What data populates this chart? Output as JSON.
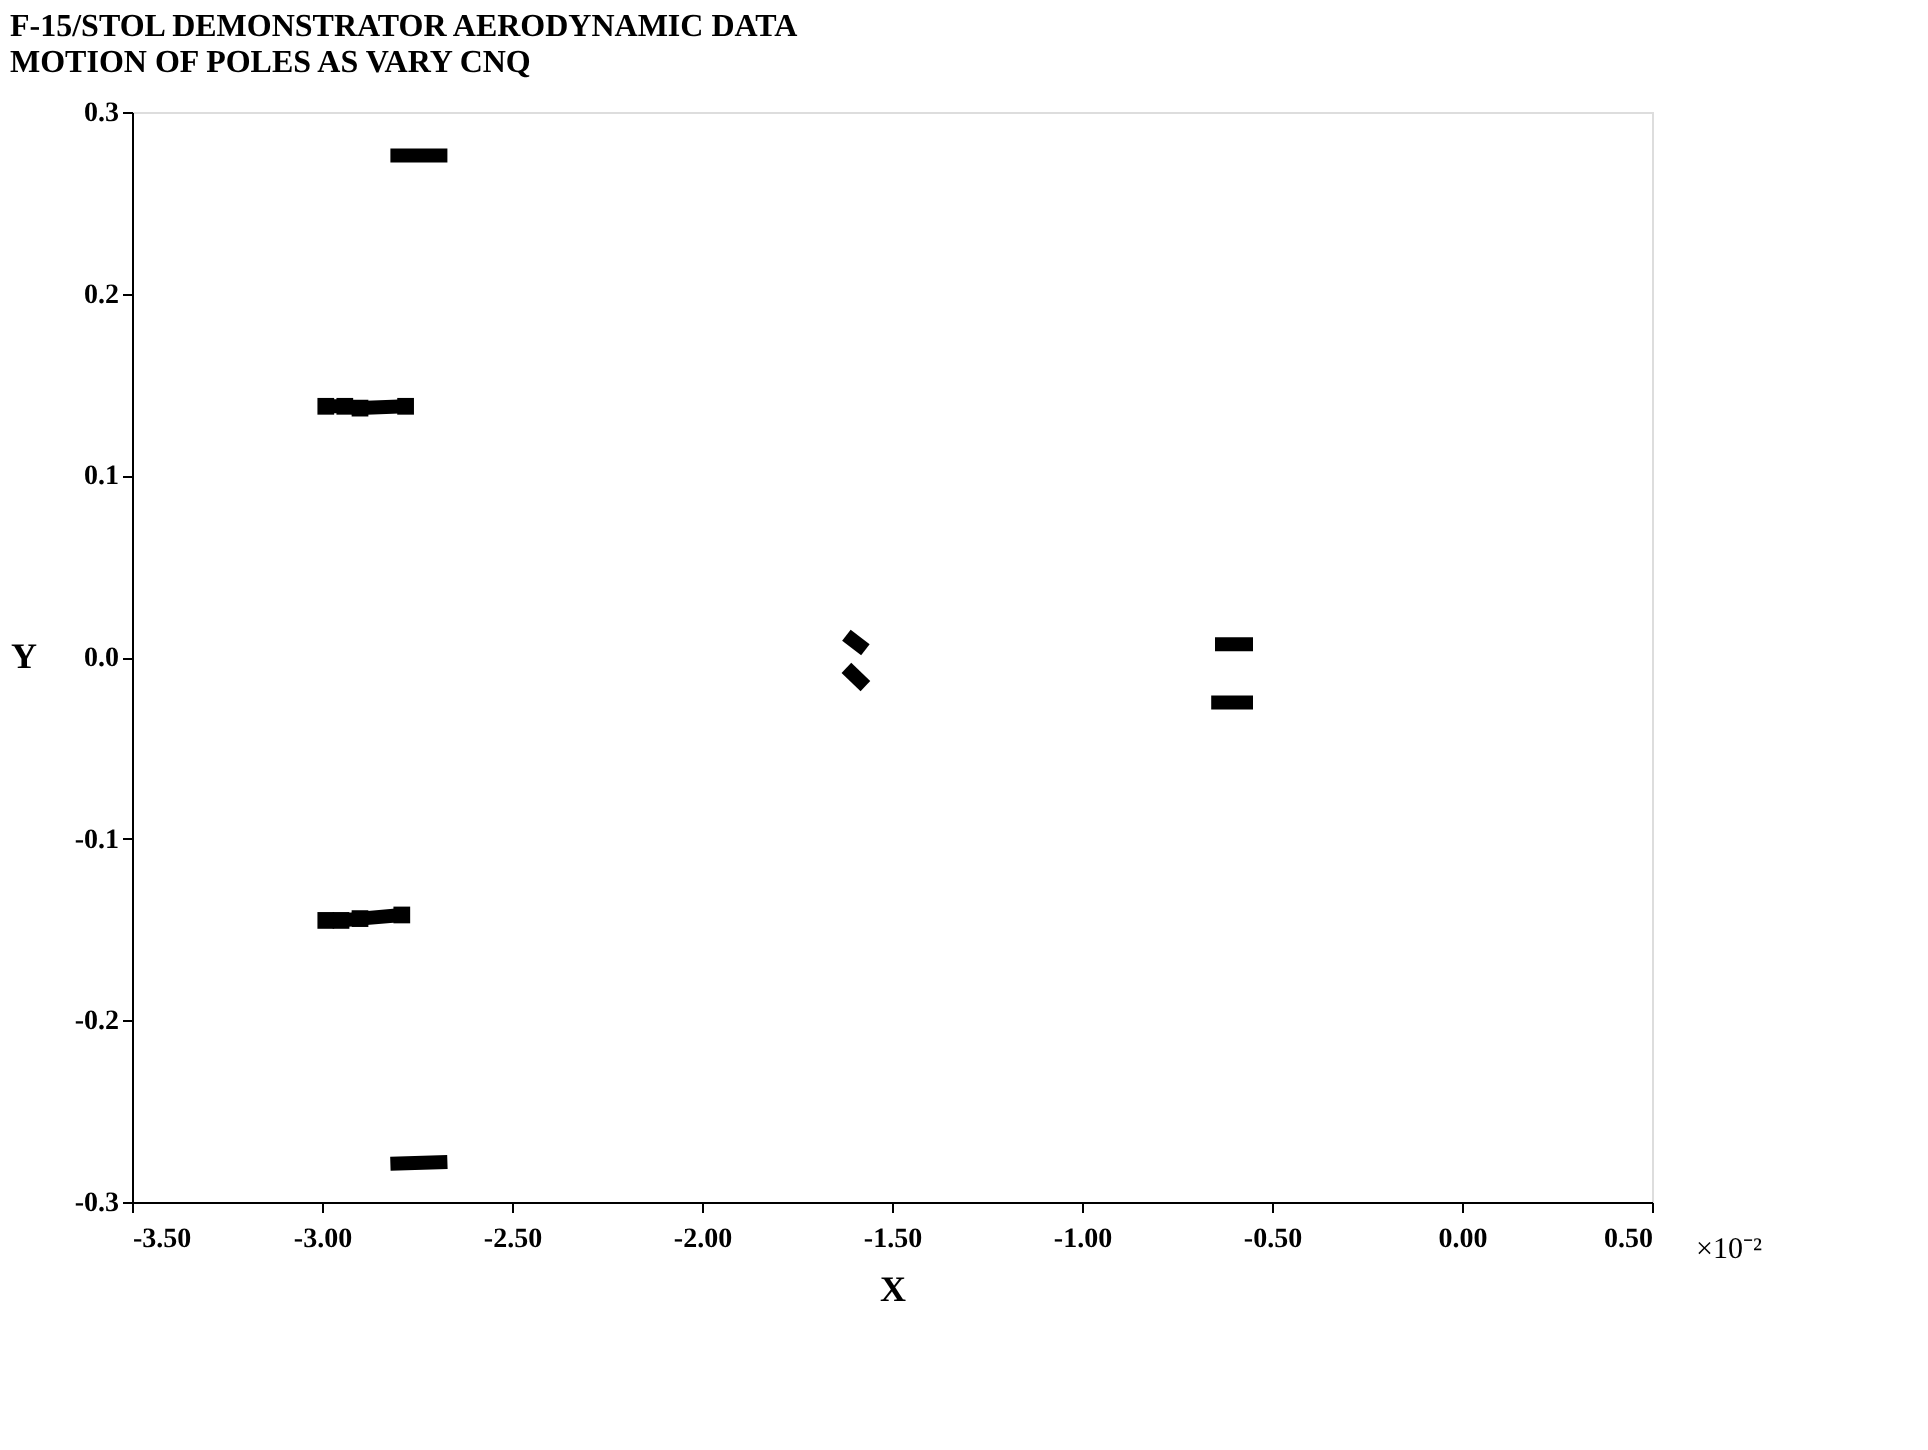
{
  "chart_data": {
    "type": "line",
    "title": "F-15/STOL DEMONSTRATOR AERODYNAMIC DATA",
    "subtitle": "MOTION OF POLES AS VARY CNQ",
    "xlabel": "X",
    "ylabel": "Y",
    "annotations": [
      "×10⁻²"
    ],
    "xlim": [
      -3.5,
      0.5
    ],
    "xticks": [
      {
        "value": -3.5,
        "label": "-3.50"
      },
      {
        "value": -3.0,
        "label": "-3.00"
      },
      {
        "value": -2.5,
        "label": "-2.50"
      },
      {
        "value": -2.0,
        "label": "-2.00"
      },
      {
        "value": -1.5,
        "label": "-1.50"
      },
      {
        "value": -1.0,
        "label": "-1.00"
      },
      {
        "value": -0.5,
        "label": "-0.50"
      },
      {
        "value": 0.0,
        "label": "0.00"
      },
      {
        "value": 0.5,
        "label": "0.50"
      }
    ],
    "ylim": [
      -0.3,
      0.3
    ],
    "yticks": [
      {
        "value": -0.3,
        "label": "-0.3"
      },
      {
        "value": -0.2,
        "label": "-0.2"
      },
      {
        "value": -0.1,
        "label": "-0.1"
      },
      {
        "value": 0.0,
        "label": "0.0"
      },
      {
        "value": 0.1,
        "label": "0.1"
      },
      {
        "value": 0.2,
        "label": "0.2"
      },
      {
        "value": 0.3,
        "label": "0.3"
      }
    ],
    "grid": false,
    "line_style": "solid",
    "series": [
      {
        "color": "#000000",
        "marker": "none",
        "x": [
          -2.67,
          -2.82
        ],
        "values": [
          0.276,
          0.276
        ]
      },
      {
        "color": "#000000",
        "marker": "square",
        "x": [
          -2.99,
          -2.94,
          -2.9,
          -2.78
        ],
        "values": [
          0.138,
          0.138,
          0.137,
          0.138
        ]
      },
      {
        "color": "#000000",
        "marker": "square",
        "x": [
          -2.99,
          -2.95,
          -2.9,
          -2.79
        ],
        "values": [
          -0.145,
          -0.145,
          -0.144,
          -0.142
        ]
      },
      {
        "color": "#000000",
        "marker": "none",
        "x": [
          -2.67,
          -2.82
        ],
        "values": [
          -0.278,
          -0.279
        ]
      },
      {
        "color": "#000000",
        "marker": "none",
        "x": [
          -1.62,
          -1.57
        ],
        "values": [
          0.012,
          0.004
        ]
      },
      {
        "color": "#000000",
        "marker": "none",
        "x": [
          -1.62,
          -1.57
        ],
        "values": [
          -0.006,
          -0.016
        ]
      },
      {
        "color": "#000000",
        "marker": "none",
        "x": [
          -0.55,
          -0.65
        ],
        "values": [
          0.007,
          0.007
        ]
      },
      {
        "color": "#000000",
        "marker": "none",
        "x": [
          -0.55,
          -0.66
        ],
        "values": [
          -0.025,
          -0.025
        ]
      }
    ]
  }
}
